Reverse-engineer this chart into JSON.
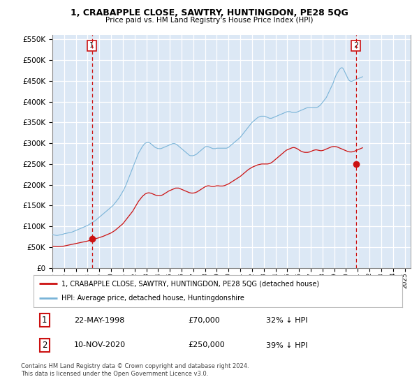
{
  "title": "1, CRABAPPLE CLOSE, SAWTRY, HUNTINGDON, PE28 5QG",
  "subtitle": "Price paid vs. HM Land Registry's House Price Index (HPI)",
  "legend_line1": "1, CRABAPPLE CLOSE, SAWTRY, HUNTINGDON, PE28 5QG (detached house)",
  "legend_line2": "HPI: Average price, detached house, Huntingdonshire",
  "footer1": "Contains HM Land Registry data © Crown copyright and database right 2024.",
  "footer2": "This data is licensed under the Open Government Licence v3.0.",
  "transaction1": {
    "label": "1",
    "date": "22-MAY-1998",
    "price": "£70,000",
    "note": "32% ↓ HPI",
    "year": 1998.37
  },
  "transaction2": {
    "label": "2",
    "date": "10-NOV-2020",
    "price": "£250,000",
    "note": "39% ↓ HPI",
    "year": 2020.84
  },
  "hpi_color": "#7ab4d8",
  "price_color": "#cc1111",
  "marker_box_color": "#cc1111",
  "background_color": "#dce8f5",
  "grid_color": "#ffffff",
  "ylim": [
    0,
    560000
  ],
  "ytick_step": 50000,
  "xlim_start": 1995.0,
  "xlim_end": 2025.5,
  "hpi_data_monthly": {
    "start_year": 1995.0,
    "step": 0.0833,
    "values": [
      80000,
      79500,
      79000,
      78500,
      78000,
      78000,
      78500,
      79000,
      79500,
      80000,
      80500,
      81000,
      82000,
      82500,
      83000,
      83500,
      84000,
      84500,
      85000,
      85500,
      86000,
      87000,
      88000,
      89000,
      90000,
      91000,
      92000,
      93000,
      94000,
      95000,
      96000,
      97000,
      98000,
      99000,
      100000,
      101000,
      102000,
      103500,
      105000,
      106500,
      108000,
      109500,
      111000,
      112500,
      114000,
      116000,
      118000,
      120000,
      122000,
      124000,
      126000,
      128000,
      130000,
      132000,
      134000,
      136000,
      138000,
      140000,
      142000,
      144000,
      146000,
      148000,
      150000,
      153000,
      156000,
      159000,
      162000,
      165000,
      168000,
      172000,
      176000,
      180000,
      184000,
      188000,
      193000,
      198000,
      204000,
      210000,
      216000,
      222000,
      228000,
      234000,
      240000,
      246000,
      252000,
      258000,
      264000,
      270000,
      276000,
      280000,
      284000,
      288000,
      292000,
      295000,
      298000,
      300000,
      301000,
      302000,
      302000,
      301000,
      300000,
      298000,
      296000,
      294000,
      292000,
      290000,
      289000,
      288000,
      287000,
      287000,
      287000,
      287000,
      288000,
      289000,
      290000,
      291000,
      292000,
      293000,
      294000,
      295000,
      296000,
      297000,
      298000,
      299000,
      299000,
      299000,
      298000,
      297000,
      295000,
      293000,
      291000,
      289000,
      287000,
      285000,
      283000,
      281000,
      279000,
      277000,
      275000,
      273000,
      271000,
      270000,
      270000,
      270000,
      270000,
      271000,
      272000,
      273000,
      275000,
      277000,
      279000,
      281000,
      283000,
      285000,
      287000,
      289000,
      291000,
      292000,
      292000,
      292000,
      291000,
      290000,
      289000,
      288000,
      287000,
      287000,
      287000,
      287000,
      288000,
      288000,
      288000,
      288000,
      288000,
      288000,
      288000,
      288000,
      288000,
      288000,
      288000,
      289000,
      290000,
      292000,
      294000,
      296000,
      298000,
      300000,
      302000,
      304000,
      306000,
      308000,
      310000,
      312000,
      314000,
      317000,
      320000,
      323000,
      326000,
      329000,
      332000,
      335000,
      338000,
      341000,
      344000,
      347000,
      350000,
      352000,
      354000,
      356000,
      358000,
      360000,
      362000,
      363000,
      364000,
      365000,
      365000,
      365000,
      365000,
      365000,
      364000,
      363000,
      362000,
      361000,
      360000,
      360000,
      360000,
      361000,
      362000,
      363000,
      364000,
      365000,
      366000,
      367000,
      368000,
      369000,
      370000,
      371000,
      372000,
      373000,
      374000,
      375000,
      376000,
      376000,
      376000,
      376000,
      375000,
      374000,
      374000,
      374000,
      374000,
      374000,
      375000,
      376000,
      377000,
      378000,
      379000,
      380000,
      381000,
      382000,
      383000,
      384000,
      385000,
      386000,
      386000,
      386000,
      386000,
      386000,
      386000,
      386000,
      386000,
      386000,
      386000,
      387000,
      388000,
      390000,
      392000,
      395000,
      398000,
      401000,
      404000,
      407000,
      410000,
      415000,
      420000,
      425000,
      430000,
      435000,
      440000,
      445000,
      452000,
      458000,
      464000,
      468000,
      472000,
      476000,
      479000,
      481000,
      482000,
      480000,
      476000,
      471000,
      466000,
      461000,
      456000,
      452000,
      450000,
      449000,
      449000,
      450000,
      451000,
      452000,
      453000,
      454000,
      455000,
      456000,
      457000,
      458000,
      459000,
      460000
    ]
  },
  "price_data_monthly": {
    "start_year": 1995.0,
    "step": 0.0833,
    "values": [
      52000,
      51800,
      51600,
      51400,
      51200,
      51000,
      51000,
      51200,
      51400,
      51600,
      51800,
      52000,
      52500,
      53000,
      53500,
      54000,
      54500,
      55000,
      55500,
      56000,
      56500,
      57000,
      57500,
      58000,
      58500,
      59000,
      59500,
      60000,
      60500,
      61000,
      61500,
      62000,
      62500,
      63000,
      63500,
      64000,
      64500,
      65200,
      65900,
      66600,
      67300,
      68000,
      68700,
      69400,
      70000,
      70700,
      71400,
      72000,
      72800,
      73600,
      74400,
      75200,
      76000,
      77000,
      78000,
      79000,
      80000,
      81000,
      82000,
      83000,
      84000,
      85500,
      87000,
      88500,
      90000,
      92000,
      94000,
      96000,
      98000,
      100000,
      102000,
      104000,
      106000,
      109000,
      112000,
      115000,
      118000,
      121000,
      124000,
      127000,
      130000,
      133000,
      136000,
      140000,
      144000,
      148000,
      152000,
      156000,
      160000,
      163000,
      166000,
      169000,
      172000,
      174000,
      176000,
      178000,
      179000,
      180000,
      180500,
      180500,
      180000,
      179500,
      178500,
      177500,
      176500,
      175500,
      174500,
      174000,
      173500,
      173500,
      173500,
      174000,
      175000,
      176000,
      177500,
      179000,
      180500,
      182000,
      183500,
      185000,
      186000,
      187000,
      188000,
      189000,
      190000,
      191000,
      192000,
      192000,
      192000,
      192000,
      191000,
      190000,
      189000,
      188000,
      187000,
      186000,
      185000,
      184000,
      183000,
      182000,
      181000,
      180500,
      180000,
      180000,
      180000,
      180500,
      181000,
      182000,
      183000,
      184500,
      186000,
      187500,
      189000,
      190500,
      192000,
      193500,
      195000,
      196000,
      197000,
      197500,
      197500,
      197000,
      196500,
      196000,
      196000,
      196000,
      196500,
      197000,
      197500,
      197500,
      197500,
      197000,
      197000,
      197000,
      197000,
      197500,
      198000,
      199000,
      200000,
      201000,
      202000,
      203500,
      205000,
      206500,
      208000,
      209500,
      211000,
      212500,
      214000,
      215500,
      217000,
      218500,
      220000,
      222000,
      224000,
      226000,
      228000,
      230000,
      232000,
      234000,
      236000,
      237500,
      239000,
      240500,
      242000,
      243000,
      244000,
      245000,
      246000,
      247000,
      248000,
      248500,
      249000,
      249500,
      250000,
      250000,
      250000,
      250000,
      250000,
      250000,
      250000,
      250500,
      251000,
      252000,
      253500,
      255000,
      257000,
      259000,
      261000,
      263000,
      265000,
      267000,
      269000,
      271000,
      273000,
      275000,
      277000,
      279000,
      281000,
      283000,
      284000,
      285000,
      286000,
      287000,
      288000,
      289000,
      289500,
      289500,
      289000,
      288000,
      287000,
      285500,
      284000,
      282500,
      281000,
      280000,
      279000,
      278500,
      278000,
      278000,
      278000,
      278000,
      278500,
      279000,
      280000,
      281000,
      282000,
      283000,
      283500,
      284000,
      284000,
      283500,
      283000,
      282500,
      282000,
      282000,
      282500,
      283000,
      284000,
      285000,
      286000,
      287000,
      288000,
      289000,
      290000,
      291000,
      291500,
      292000,
      292000,
      292000,
      291500,
      291000,
      290000,
      289000,
      288000,
      287000,
      286000,
      285000,
      284000,
      283000,
      282000,
      281000,
      280000,
      279500,
      279000,
      279000,
      279000,
      279500,
      280000,
      281000,
      282000,
      283000,
      284000,
      285000,
      286000,
      287000,
      288000,
      289000
    ]
  }
}
